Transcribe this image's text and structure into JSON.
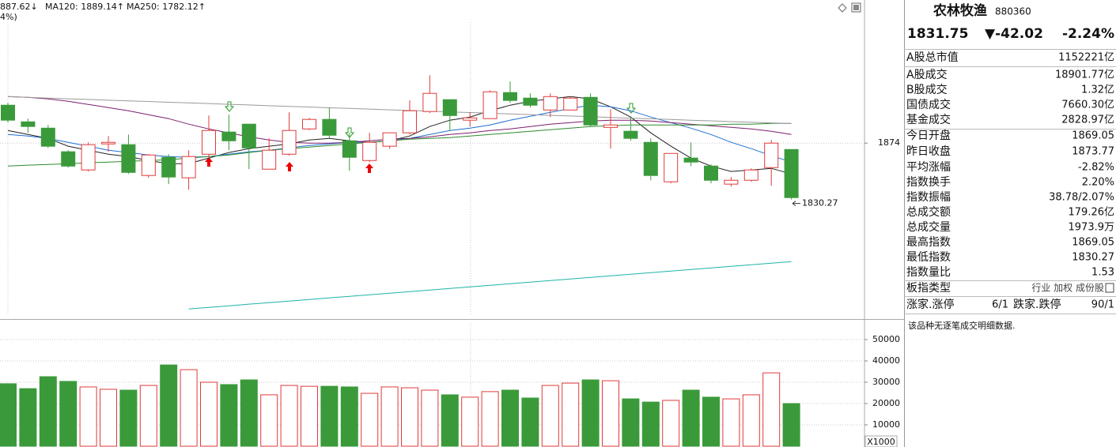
{
  "header": {
    "indicators": [
      {
        "text": "887.62↓",
        "color": "#666666"
      },
      {
        "text": "MA120: 1889.14↑",
        "color": "#2e7d32"
      },
      {
        "text": "MA250: 1782.12↑",
        "color": "#20b2aa"
      }
    ],
    "sub": "4%)"
  },
  "chart_data": {
    "type": "candlestick",
    "ylim": [
      1740,
      1985
    ],
    "yticks": [
      1874
    ],
    "grid": true,
    "low_label": "1830.27",
    "up_color": "#e03a3a",
    "down_color": "#3a9a3a",
    "candles": {
      "open": [
        1903.4,
        1890.5,
        1885.6,
        1867.3,
        1853.2,
        1873.4,
        1872.8,
        1848.9,
        1863.0,
        1847.1,
        1865.4,
        1882.6,
        1888.7,
        1853.8,
        1865.4,
        1885.0,
        1892.4,
        1875.8,
        1860.5,
        1871.6,
        1882.0,
        1898.5,
        1907.7,
        1891.8,
        1893.0,
        1913.2,
        1908.9,
        1899.7,
        1899.7,
        1909.5,
        1886.2,
        1883.2,
        1874.6,
        1844.0,
        1862.4,
        1856.2,
        1842.2,
        1845.2,
        1855.0,
        1869.05
      ],
      "high": [
        1905.2,
        1893.0,
        1888.1,
        1868.5,
        1874.6,
        1879.5,
        1880.7,
        1865.4,
        1865.4,
        1868.5,
        1895.4,
        1896.0,
        1888.7,
        1877.7,
        1897.9,
        1893.6,
        1901.6,
        1882.0,
        1882.0,
        1882.0,
        1907.1,
        1926.7,
        1907.7,
        1897.9,
        1915.0,
        1921.8,
        1912.6,
        1912.6,
        1910.1,
        1912.6,
        1900.3,
        1894.2,
        1877.7,
        1866.0,
        1874.6,
        1857.5,
        1847.7,
        1854.4,
        1876.5,
        1869.05
      ],
      "low": [
        1889.9,
        1882.0,
        1870.3,
        1855.0,
        1852.0,
        1867.3,
        1850.1,
        1847.1,
        1842.2,
        1837.9,
        1862.4,
        1868.5,
        1853.8,
        1853.8,
        1864.2,
        1884.0,
        1877.7,
        1852.6,
        1859.3,
        1869.7,
        1880.7,
        1897.3,
        1883.8,
        1886.9,
        1893.0,
        1905.2,
        1901.6,
        1894.2,
        1899.7,
        1886.9,
        1869.7,
        1875.8,
        1845.2,
        1842.8,
        1856.2,
        1842.8,
        1840.3,
        1844.0,
        1840.9,
        1830.27
      ],
      "close": [
        1891.8,
        1886.9,
        1871.6,
        1856.2,
        1872.8,
        1874.6,
        1851.3,
        1864.8,
        1847.7,
        1863.6,
        1883.8,
        1875.8,
        1870.3,
        1868.5,
        1883.8,
        1892.4,
        1880.1,
        1863.0,
        1874.6,
        1882.0,
        1899.1,
        1912.6,
        1895.4,
        1893.6,
        1913.8,
        1907.1,
        1903.4,
        1910.1,
        1908.9,
        1888.1,
        1888.1,
        1877.7,
        1848.9,
        1866.0,
        1859.3,
        1845.2,
        1845.2,
        1853.2,
        1874.0,
        1831.75
      ]
    },
    "ma_lines": [
      {
        "color": "#222222",
        "values": [
          1883.8,
          1880.7,
          1877.7,
          1871.6,
          1868.5,
          1865.4,
          1863.6,
          1860.5,
          1858.1,
          1858.1,
          1862.4,
          1866.7,
          1869.7,
          1871.6,
          1873.4,
          1876.4,
          1877.7,
          1875.8,
          1874.6,
          1875.8,
          1879.5,
          1886.9,
          1891.8,
          1894.2,
          1899.1,
          1903.4,
          1906.5,
          1908.3,
          1910.1,
          1908.3,
          1902.2,
          1894.2,
          1882.0,
          1871.6,
          1862.4,
          1856.2,
          1852.0,
          1853.2,
          1854.4,
          1850.1
        ]
      },
      {
        "color": "#1f6fd0",
        "values": [
          1880.7,
          1879.5,
          1877.7,
          1874.6,
          1871.6,
          1868.5,
          1866.7,
          1864.8,
          1863.6,
          1863.0,
          1863.6,
          1865.4,
          1867.3,
          1868.5,
          1870.3,
          1872.2,
          1873.4,
          1874.6,
          1874.6,
          1875.8,
          1877.7,
          1880.7,
          1883.8,
          1885.6,
          1888.1,
          1891.8,
          1894.8,
          1897.9,
          1900.9,
          1903.4,
          1902.2,
          1899.1,
          1894.2,
          1889.9,
          1885.6,
          1880.7,
          1874.6,
          1869.7,
          1864.2,
          1859.3
        ]
      },
      {
        "color": "#7b1f6e",
        "values": [
          1910.1,
          1909.5,
          1908.3,
          1906.5,
          1904.0,
          1901.6,
          1899.1,
          1896.0,
          1893.0,
          1888.7,
          1885.0,
          1882.0,
          1878.9,
          1876.4,
          1874.6,
          1874.0,
          1874.0,
          1874.6,
          1875.8,
          1877.1,
          1877.7,
          1878.9,
          1880.7,
          1882.0,
          1883.8,
          1885.0,
          1886.9,
          1888.7,
          1889.9,
          1891.1,
          1891.8,
          1891.8,
          1891.1,
          1889.9,
          1888.7,
          1887.5,
          1886.2,
          1885.0,
          1883.2,
          1880.7
        ]
      },
      {
        "color": "#2e8b2e",
        "values": [
          1856.2,
          1856.9,
          1857.5,
          1858.1,
          1858.7,
          1859.3,
          1859.9,
          1860.5,
          1861.1,
          1862.4,
          1863.6,
          1864.8,
          1866.7,
          1868.5,
          1869.7,
          1870.9,
          1872.2,
          1873.4,
          1874.6,
          1875.8,
          1877.1,
          1877.7,
          1878.3,
          1879.5,
          1880.7,
          1882.0,
          1883.2,
          1884.4,
          1885.6,
          1886.9,
          1887.5,
          1888.1,
          1888.1,
          1888.1,
          1888.1,
          1888.1,
          1888.7,
          1888.7,
          1889.3,
          1889.3
        ]
      },
      {
        "color": "#9a9a9a",
        "values": [
          1910.0,
          1909.5,
          1908.9,
          1908.4,
          1907.9,
          1907.3,
          1906.8,
          1906.3,
          1905.7,
          1905.2,
          1904.7,
          1904.1,
          1903.6,
          1903.0,
          1902.5,
          1902.0,
          1901.4,
          1900.9,
          1900.4,
          1899.8,
          1899.3,
          1898.8,
          1898.2,
          1897.7,
          1897.2,
          1896.6,
          1896.1,
          1895.5,
          1895.0,
          1894.5,
          1893.9,
          1893.4,
          1892.9,
          1892.3,
          1891.8,
          1891.3,
          1890.7,
          1890.2,
          1889.7,
          1889.14
        ]
      },
      {
        "color": "#20b2aa",
        "values": [
          null,
          null,
          null,
          null,
          null,
          null,
          null,
          null,
          null,
          1745.4,
          1746.6,
          1747.8,
          1749.1,
          1750.3,
          1751.5,
          1752.7,
          1754.0,
          1755.2,
          1756.4,
          1757.6,
          1758.8,
          1760.1,
          1761.3,
          1762.5,
          1763.7,
          1765.0,
          1766.2,
          1767.4,
          1768.6,
          1769.8,
          1771.1,
          1772.3,
          1773.5,
          1774.7,
          1776.0,
          1777.2,
          1778.4,
          1779.6,
          1780.9,
          1782.12
        ]
      }
    ],
    "volume": {
      "ylim": [
        0,
        59260
      ],
      "yticks": [
        10000,
        20000,
        30000,
        40000,
        50000
      ],
      "unit_label": "X1000",
      "values": [
        29300,
        27000,
        32600,
        30400,
        27800,
        26700,
        26300,
        28500,
        38100,
        35900,
        30000,
        28900,
        31100,
        24100,
        28500,
        28100,
        28100,
        27800,
        24800,
        27800,
        27400,
        26300,
        24100,
        23000,
        25600,
        26300,
        22600,
        28500,
        29600,
        31100,
        30700,
        22200,
        20700,
        21500,
        26300,
        23000,
        22200,
        24100,
        34400,
        20000
      ]
    }
  },
  "panel": {
    "name": "农林牧渔",
    "code": "880360",
    "price": "1831.75",
    "change": "▼-42.02",
    "change_pct": "-2.24%",
    "rows": [
      {
        "label": "A股总市值",
        "value": "1152221亿"
      },
      {
        "label": "A股成交",
        "value": "18901.77亿"
      },
      {
        "label": "B股成交",
        "value": "1.32亿"
      },
      {
        "label": "国债成交",
        "value": "7660.30亿"
      },
      {
        "label": "基金成交",
        "value": "2828.97亿"
      },
      {
        "label": "今日开盘",
        "value": "1869.05",
        "color": "#1a8a1a"
      },
      {
        "label": "昨日收盘",
        "value": "1873.77"
      },
      {
        "label": "平均涨幅",
        "value": "-2.82%",
        "color": "#1a8a1a"
      },
      {
        "label": "指数换手",
        "value": "2.20%"
      },
      {
        "label": "指数振幅",
        "value": "38.78/2.07%"
      },
      {
        "label": "总成交额",
        "value": "179.26亿"
      },
      {
        "label": "总成交量",
        "value": "1973.9万"
      },
      {
        "label": "最高指数",
        "value": "1869.05",
        "color": "#1a8a1a"
      },
      {
        "label": "最低指数",
        "value": "1830.27",
        "color": "#1a8a1a"
      },
      {
        "label": "指数量比",
        "value": "1.53",
        "color": "#e03a3a"
      },
      {
        "label": "板指类型",
        "value": "行业 加权 成份股"
      }
    ],
    "breadth": {
      "up_label": "涨家.涨停",
      "up_value": "6/1",
      "down_label": "跌家.跌停",
      "down_value": "90/1"
    },
    "note": "该品种无逐笔成交明细数据."
  }
}
